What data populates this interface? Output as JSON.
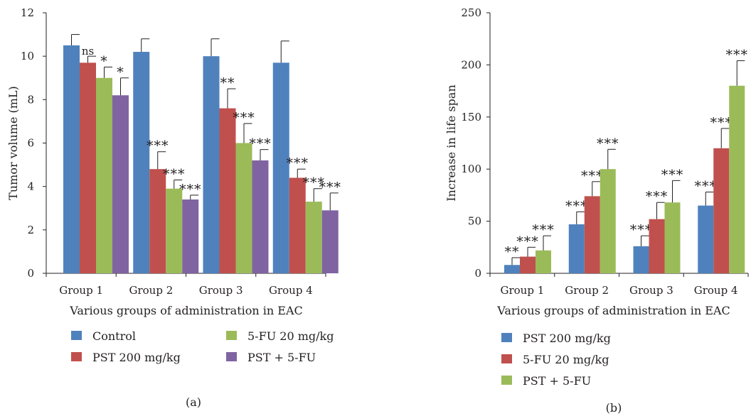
{
  "colors": {
    "blue": "#4f81bd",
    "red": "#c0504d",
    "green": "#9bbb59",
    "purple": "#8064a2",
    "axis": "#231f20"
  },
  "chart_data": [
    {
      "type": "bar",
      "panel_label": "(a)",
      "title": "",
      "xlabel": "Various groups of administration in EAC",
      "ylabel": "Tumor volume (mL)",
      "ylim": [
        0,
        12
      ],
      "yticks": [
        "0",
        "2",
        "4",
        "6",
        "8",
        "10",
        "12"
      ],
      "grid": false,
      "legend_position": "bottom",
      "categories": [
        "Group 1",
        "Group 2",
        "Group 3",
        "Group 4"
      ],
      "series": [
        {
          "name": "Control",
          "color": "#4f81bd",
          "values": [
            10.5,
            10.2,
            10.0,
            9.7
          ],
          "errors": [
            0.5,
            0.6,
            0.8,
            1.0
          ],
          "labels": [
            "",
            "",
            "",
            ""
          ]
        },
        {
          "name": "PST 200 mg/kg",
          "color": "#c0504d",
          "values": [
            9.7,
            4.8,
            7.6,
            4.4
          ],
          "errors": [
            0.3,
            0.8,
            0.9,
            0.4
          ],
          "labels": [
            "ns",
            "***",
            "**",
            "***"
          ]
        },
        {
          "name": "5-FU 20 mg/kg",
          "color": "#9bbb59",
          "values": [
            9.0,
            3.9,
            6.0,
            3.3
          ],
          "errors": [
            0.5,
            0.4,
            0.9,
            0.6
          ],
          "labels": [
            "*",
            "***",
            "***",
            "***"
          ]
        },
        {
          "name": "PST + 5-FU",
          "color": "#8064a2",
          "values": [
            8.2,
            3.4,
            5.2,
            2.9
          ],
          "errors": [
            0.8,
            0.2,
            0.5,
            0.8
          ],
          "labels": [
            "*",
            "***",
            "***",
            "***"
          ]
        }
      ]
    },
    {
      "type": "bar",
      "panel_label": "(b)",
      "title": "",
      "xlabel": "Various groups of administration in EAC",
      "ylabel": "Increase in life span",
      "ylim": [
        0,
        250
      ],
      "yticks": [
        "0",
        "50",
        "100",
        "150",
        "200",
        "250"
      ],
      "grid": false,
      "legend_position": "bottom",
      "categories": [
        "Group 1",
        "Group 2",
        "Group 3",
        "Group 4"
      ],
      "series": [
        {
          "name": "PST 200 mg/kg",
          "color": "#4f81bd",
          "values": [
            8,
            47,
            26,
            65
          ],
          "errors": [
            7,
            12,
            10,
            13
          ],
          "labels": [
            "**",
            "***",
            "***",
            "***"
          ]
        },
        {
          "name": "5-FU 20 mg/kg",
          "color": "#c0504d",
          "values": [
            16,
            74,
            52,
            120
          ],
          "errors": [
            9,
            14,
            16,
            19
          ],
          "labels": [
            "***",
            "***",
            "***",
            "***"
          ]
        },
        {
          "name": "PST + 5-FU",
          "color": "#9bbb59",
          "values": [
            22,
            100,
            68,
            180
          ],
          "errors": [
            14,
            19,
            21,
            24
          ],
          "labels": [
            "***",
            "***",
            "***",
            "***"
          ]
        }
      ]
    }
  ]
}
